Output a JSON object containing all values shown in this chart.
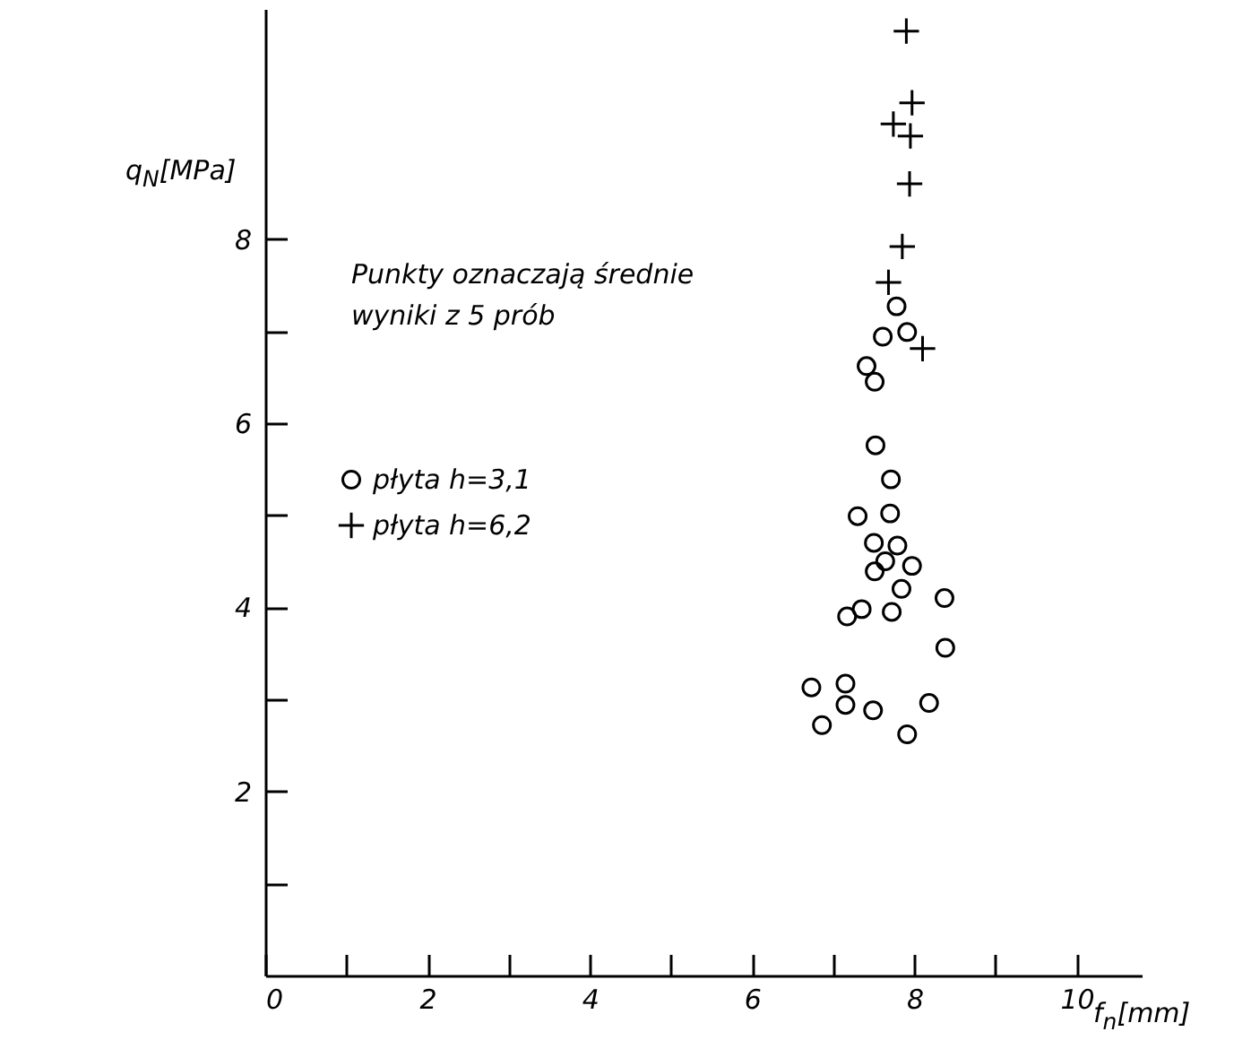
{
  "chart_data": {
    "type": "scatter",
    "xlabel": "f$_{n}$[mm]",
    "ylabel": "q$_{N}$[MPa]",
    "annotations": [
      "Punkty oznaczają średnie wyniki z 5 prób"
    ],
    "xlim": [
      0,
      10.8
    ],
    "ylim": [
      0,
      10.5
    ],
    "xticks": [
      0,
      {
        "value": 1,
        "label": null
      },
      2,
      {
        "value": 3,
        "label": null
      },
      4,
      {
        "value": 5,
        "label": null
      },
      6,
      {
        "value": 7,
        "label": null
      },
      8,
      {
        "value": 9,
        "label": null
      },
      10
    ],
    "yticks": [
      {
        "value": 1,
        "label": null
      },
      2,
      {
        "value": 3,
        "label": null
      },
      4,
      {
        "value": 5,
        "label": null
      },
      6,
      {
        "value": 7,
        "label": null
      },
      8
    ],
    "grid": false,
    "legend": "left",
    "series": [
      {
        "name": "płyta h=3,1",
        "color": "#000000",
        "marker": "circle",
        "x": [
          7.78,
          7.61,
          7.91,
          7.41,
          7.51,
          7.52,
          7.71,
          7.3,
          7.7,
          7.5,
          7.79,
          7.64,
          7.51,
          7.97,
          7.84,
          8.37,
          7.35,
          7.17,
          7.72,
          8.38,
          6.73,
          7.15,
          7.15,
          7.49,
          8.18,
          6.86,
          7.91
        ],
        "values": [
          7.27,
          6.94,
          6.99,
          6.62,
          6.45,
          5.76,
          5.39,
          4.99,
          5.02,
          4.7,
          4.67,
          4.5,
          4.39,
          4.45,
          4.2,
          4.1,
          3.98,
          3.9,
          3.95,
          3.56,
          3.13,
          3.17,
          2.94,
          2.88,
          2.96,
          2.72,
          2.62
        ]
      },
      {
        "name": "płyta h=6,2",
        "color": "#000000",
        "marker": "cross",
        "x": [
          7.9,
          7.97,
          7.74,
          7.95,
          7.94,
          7.85,
          7.68,
          8.1
        ],
        "values": [
          10.26,
          9.48,
          9.25,
          9.12,
          8.6,
          7.92,
          7.53,
          6.81
        ]
      }
    ]
  }
}
